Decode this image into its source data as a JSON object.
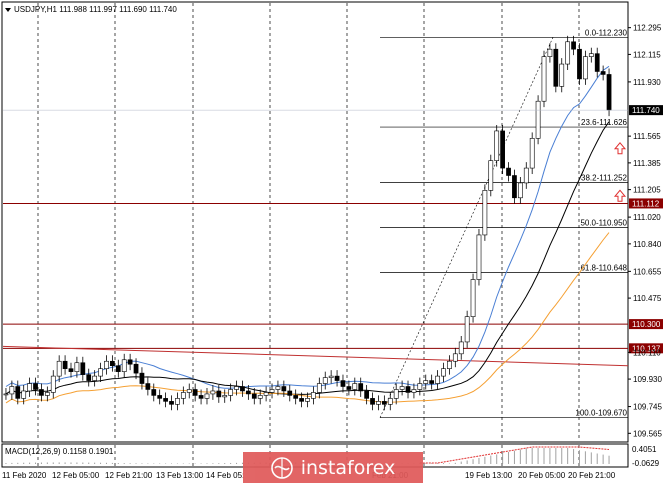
{
  "header": {
    "symbol_text": "USDJPY,H1  111.988 111.997 111.690 111.740",
    "menu_icon": "triangle-down-icon"
  },
  "price_axis": {
    "ticks": [
      "112.295",
      "112.115",
      "111.930",
      "111.565",
      "111.385",
      "111.205",
      "111.020",
      "110.840",
      "110.655",
      "110.475",
      "110.110",
      "109.930",
      "109.745",
      "109.565"
    ],
    "current_price": "111.740",
    "level_tags": [
      {
        "value": "111.112",
        "color": "#8b0000"
      },
      {
        "value": "110.300",
        "color": "#8b0000"
      },
      {
        "value": "110.137",
        "color": "#8b0000"
      }
    ]
  },
  "fibonacci": {
    "levels": [
      {
        "label": "0.0-112.230",
        "price": 112.23
      },
      {
        "label": "23.6-111.626",
        "price": 111.626
      },
      {
        "label": "38.2-111.252",
        "price": 111.252
      },
      {
        "label": "50.0-110.950",
        "price": 110.95
      },
      {
        "label": "61.8-110.648",
        "price": 110.648
      },
      {
        "label": "100.0-109.670",
        "price": 109.67
      }
    ]
  },
  "time_axis": {
    "labels": [
      "11 Feb 2020",
      "12 Feb 05:00",
      "12 Feb 21:00",
      "13 Feb 13:00",
      "14 Feb 05:",
      "Feb 21:00",
      "19 Feb 13:00",
      "20 Feb 05:00",
      "20 Feb 21:00"
    ]
  },
  "macd": {
    "label": "MACD(12,26,9) 0.1158 0.1901",
    "scale_top": "0.4051",
    "scale_bottom": "-0.0629"
  },
  "watermark": {
    "text": "instaforex",
    "logo_icon": "instaforex-logo-icon"
  },
  "colors": {
    "candle": "#000000",
    "blue_ma": "#4a7fd4",
    "black_ma": "#000000",
    "orange_ma": "#f5a033",
    "level_line": "#8b0000",
    "arrow": "#e03030",
    "macd_hist": "#e03030"
  },
  "chart_data": {
    "type": "candlestick",
    "symbol": "USDJPY",
    "timeframe": "H1",
    "ohlc_last": {
      "open": 111.988,
      "high": 111.997,
      "low": 111.69,
      "close": 111.74
    },
    "ylim": [
      109.52,
      112.36
    ],
    "horizontal_levels": [
      111.112,
      110.3,
      110.137
    ],
    "close_series": [
      109.83,
      109.88,
      109.8,
      109.85,
      109.9,
      109.86,
      109.82,
      109.84,
      109.95,
      110.05,
      110.0,
      109.98,
      110.04,
      109.96,
      109.92,
      109.95,
      110.0,
      110.05,
      110.02,
      109.98,
      110.06,
      110.03,
      109.97,
      109.9,
      109.86,
      109.82,
      109.8,
      109.78,
      109.76,
      109.8,
      109.84,
      109.86,
      109.82,
      109.8,
      109.83,
      109.85,
      109.81,
      109.82,
      109.86,
      109.88,
      109.85,
      109.83,
      109.8,
      109.82,
      109.84,
      109.86,
      109.88,
      109.85,
      109.82,
      109.8,
      109.78,
      109.8,
      109.84,
      109.9,
      109.94,
      109.95,
      109.92,
      109.88,
      109.86,
      109.9,
      109.85,
      109.8,
      109.76,
      109.78,
      109.76,
      109.8,
      109.86,
      109.88,
      109.84,
      109.86,
      109.9,
      109.92,
      109.9,
      109.95,
      110.0,
      110.05,
      110.1,
      110.18,
      110.35,
      110.6,
      110.9,
      111.2,
      111.4,
      111.6,
      111.35,
      111.3,
      111.15,
      111.25,
      111.35,
      111.55,
      111.8,
      112.1,
      112.15,
      111.9,
      112.05,
      112.2,
      112.15,
      111.95,
      112.1,
      112.12,
      112.0,
      111.98,
      111.74
    ],
    "ma_series": [
      {
        "color": "blue",
        "start": [
          109.95,
          110.0
        ],
        "end": [
          111.52
        ]
      },
      {
        "color": "black",
        "start": [
          109.84
        ],
        "end": [
          111.05
        ]
      },
      {
        "color": "orange",
        "start": [
          109.72
        ],
        "end": [
          110.66
        ]
      }
    ]
  }
}
